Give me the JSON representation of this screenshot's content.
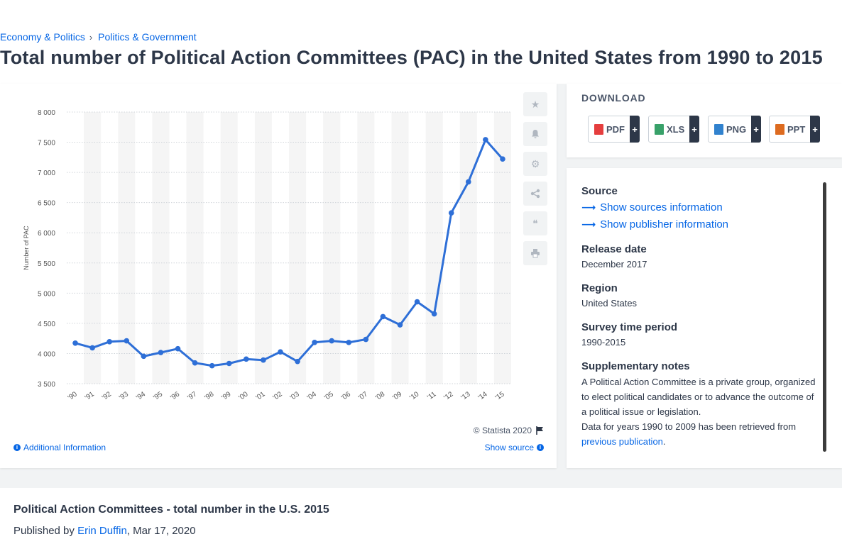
{
  "breadcrumb": {
    "item1": "Economy & Politics",
    "separator": "›",
    "item2": "Politics & Government"
  },
  "page_title": "Total number of Political Action Committees (PAC) in the United States from 1990 to 2015",
  "chart_credit": "© Statista 2020",
  "additional_info": "Additional Information",
  "show_source": "Show source",
  "download": {
    "title": "DOWNLOAD",
    "buttons": [
      {
        "label": "PDF",
        "color": "#e53e3e"
      },
      {
        "label": "XLS",
        "color": "#38a169"
      },
      {
        "label": "PNG",
        "color": "#3182ce"
      },
      {
        "label": "PPT",
        "color": "#dd6b20"
      }
    ],
    "plus": "+"
  },
  "details": {
    "source_label": "Source",
    "show_sources": "Show sources information",
    "show_publisher": "Show publisher information",
    "release_label": "Release date",
    "release_value": "December 2017",
    "region_label": "Region",
    "region_value": "United States",
    "period_label": "Survey time period",
    "period_value": "1990-2015",
    "notes_label": "Supplementary notes",
    "notes_text": "A Political Action Committee is a private group, organized to elect political candidates or to advance the outcome of a political issue or legislation.",
    "notes_text2": "Data for years 1990 to 2009 has been retrieved from",
    "notes_link": "previous publication",
    "notes_end": "."
  },
  "publication": {
    "title": "Political Action Committees - total number in the U.S. 2015",
    "published_by": "Published by",
    "author": "Erin Duffin",
    "date": ", Mar 17, 2020"
  },
  "chart_data": {
    "type": "line",
    "title": "",
    "xlabel": "",
    "ylabel": "Number of PAC",
    "categories": [
      "'90",
      "'91",
      "'92",
      "'93",
      "'94",
      "'95",
      "'96",
      "'97",
      "'98",
      "'99",
      "'00",
      "'01",
      "'02",
      "'03",
      "'04",
      "'05",
      "'06",
      "'07",
      "'08",
      "'09",
      "'10",
      "'11",
      "'12",
      "'13",
      "'14",
      "'15"
    ],
    "series": [
      {
        "values": [
          4172,
          4094,
          4195,
          4210,
          3954,
          4016,
          4079,
          3844,
          3798,
          3835,
          3907,
          3891,
          4027,
          3868,
          4184,
          4210,
          4183,
          4234,
          4611,
          4475,
          4857,
          4657,
          6330,
          6844,
          7542,
          7222
        ]
      }
    ],
    "yticks": [
      "8 000",
      "7 500",
      "7 000",
      "6 500",
      "6 000",
      "5 500",
      "5 000",
      "4 500",
      "4 000",
      "3 500"
    ],
    "ylim": [
      3500,
      8000
    ],
    "grid": true,
    "color": "#2e6fd7"
  }
}
